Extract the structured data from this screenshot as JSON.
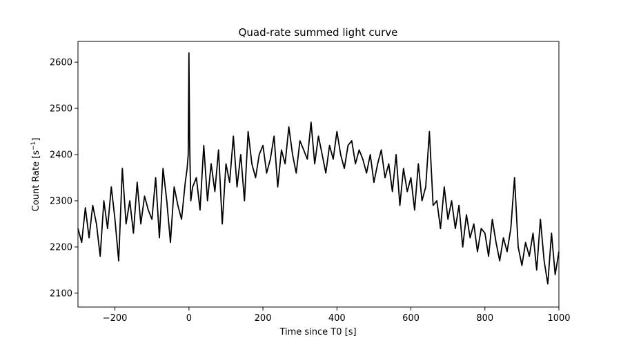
{
  "chart_data": {
    "type": "line",
    "title": "Quad-rate summed light curve",
    "xlabel": "Time since T0 [s]",
    "ylabel_main": "Count Rate [s",
    "ylabel_sup": "−1",
    "ylabel_close": "]",
    "xlim": [
      -300,
      1000
    ],
    "ylim": [
      2070,
      2645
    ],
    "xticks": [
      -200,
      0,
      200,
      400,
      600,
      800,
      1000
    ],
    "xtick_labels": [
      "−200",
      "0",
      "200",
      "400",
      "600",
      "800",
      "1000"
    ],
    "yticks": [
      2100,
      2200,
      2300,
      2400,
      2500,
      2600
    ],
    "ytick_labels": [
      "2100",
      "2200",
      "2300",
      "2400",
      "2500",
      "2600"
    ],
    "grid": false,
    "legend": "none",
    "line_color": "#000000",
    "series": [
      {
        "x": [
          -300,
          -290,
          -280,
          -270,
          -260,
          -250,
          -240,
          -230,
          -220,
          -210,
          -200,
          -190,
          -180,
          -170,
          -160,
          -150,
          -140,
          -130,
          -120,
          -110,
          -100,
          -90,
          -80,
          -70,
          -60,
          -50,
          -40,
          -30,
          -20,
          -10,
          -5,
          -2,
          0,
          2,
          5,
          10,
          20,
          30,
          40,
          50,
          60,
          70,
          80,
          90,
          100,
          110,
          120,
          130,
          140,
          150,
          160,
          170,
          180,
          190,
          200,
          210,
          220,
          230,
          240,
          250,
          260,
          270,
          280,
          290,
          300,
          310,
          320,
          330,
          340,
          350,
          360,
          370,
          380,
          390,
          400,
          410,
          420,
          430,
          440,
          450,
          460,
          470,
          480,
          490,
          500,
          510,
          520,
          530,
          540,
          550,
          560,
          570,
          580,
          590,
          600,
          610,
          620,
          630,
          640,
          650,
          660,
          670,
          680,
          690,
          700,
          710,
          720,
          730,
          740,
          750,
          760,
          770,
          780,
          790,
          800,
          810,
          820,
          830,
          840,
          850,
          860,
          870,
          880,
          890,
          900,
          910,
          920,
          930,
          940,
          950,
          960,
          970,
          980,
          990,
          1000
        ],
        "y": [
          2240,
          2210,
          2285,
          2220,
          2290,
          2250,
          2180,
          2300,
          2240,
          2330,
          2260,
          2170,
          2370,
          2250,
          2300,
          2230,
          2340,
          2250,
          2310,
          2280,
          2260,
          2350,
          2220,
          2370,
          2300,
          2210,
          2330,
          2290,
          2260,
          2340,
          2370,
          2400,
          2620,
          2420,
          2300,
          2330,
          2350,
          2280,
          2420,
          2300,
          2380,
          2320,
          2410,
          2250,
          2380,
          2340,
          2440,
          2330,
          2400,
          2300,
          2450,
          2380,
          2350,
          2400,
          2420,
          2360,
          2390,
          2440,
          2330,
          2410,
          2380,
          2460,
          2400,
          2360,
          2430,
          2410,
          2390,
          2470,
          2380,
          2440,
          2400,
          2360,
          2420,
          2390,
          2450,
          2400,
          2370,
          2420,
          2430,
          2380,
          2410,
          2390,
          2360,
          2400,
          2340,
          2380,
          2410,
          2350,
          2380,
          2320,
          2400,
          2290,
          2370,
          2320,
          2350,
          2280,
          2380,
          2300,
          2330,
          2450,
          2290,
          2300,
          2240,
          2330,
          2260,
          2300,
          2240,
          2290,
          2200,
          2270,
          2220,
          2250,
          2190,
          2240,
          2230,
          2180,
          2260,
          2210,
          2170,
          2220,
          2190,
          2240,
          2350,
          2200,
          2160,
          2210,
          2180,
          2230,
          2150,
          2260,
          2170,
          2120,
          2230,
          2140,
          2190
        ]
      }
    ]
  }
}
